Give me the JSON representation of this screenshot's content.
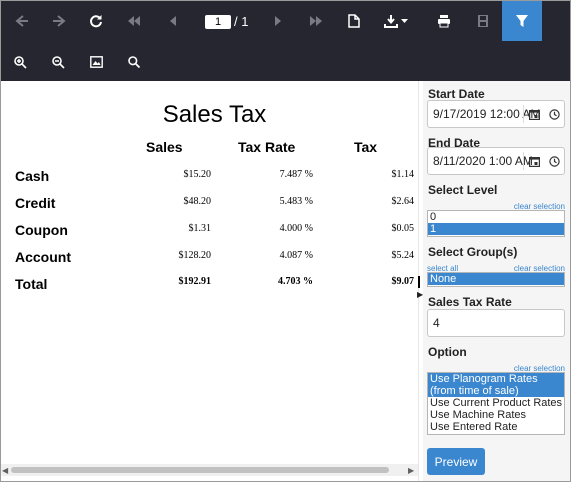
{
  "toolbar": {
    "page_current": "1",
    "page_total": "/ 1",
    "icons": [
      "first-page-icon",
      "previous-page-icon",
      "refresh-icon",
      "first-page-icon",
      "previous-page-icon",
      "next-page-icon",
      "last-page-icon",
      "document-icon",
      "export-icon",
      "print-icon",
      "save-icon",
      "filter-icon",
      "zoom-in-icon",
      "zoom-out-icon",
      "fit-page-icon",
      "search-icon"
    ]
  },
  "report": {
    "title": "Sales Tax",
    "columns": [
      "Sales",
      "Tax Rate",
      "Tax"
    ],
    "rows": [
      {
        "label": "Cash",
        "sales": "$15.20",
        "rate": "7.487 %",
        "tax": "$1.14"
      },
      {
        "label": "Credit",
        "sales": "$48.20",
        "rate": "5.483 %",
        "tax": "$2.64"
      },
      {
        "label": "Coupon",
        "sales": "$1.31",
        "rate": "4.000 %",
        "tax": "$0.05"
      },
      {
        "label": "Account",
        "sales": "$128.20",
        "rate": "4.087 %",
        "tax": "$5.24"
      }
    ],
    "total": {
      "label": "Total",
      "sales": "$192.91",
      "rate": "4.703 %",
      "tax": "$9.07"
    }
  },
  "params": {
    "start_date_label": "Start Date",
    "start_date_value": "9/17/2019 12:00 AM",
    "end_date_label": "End Date",
    "end_date_value": "8/11/2020 1:00 AM",
    "level_label": "Select Level",
    "level_clear": "clear selection",
    "level_options": [
      "0",
      "1"
    ],
    "group_label": "Select Group(s)",
    "group_select_all": "select all",
    "group_clear": "clear selection",
    "group_options": [
      "None"
    ],
    "rate_label": "Sales Tax Rate",
    "rate_value": "4",
    "option_label": "Option",
    "option_clear": "clear selection",
    "option_values": [
      "Use Planogram Rates (from time of sale)",
      "Use Current Product Rates",
      "Use Machine Rates",
      "Use Entered Rate"
    ],
    "preview_label": "Preview"
  },
  "colors": {
    "accent": "#3a86cf",
    "toolbar_bg": "#262630",
    "panel_bg": "#f5f5f5"
  }
}
